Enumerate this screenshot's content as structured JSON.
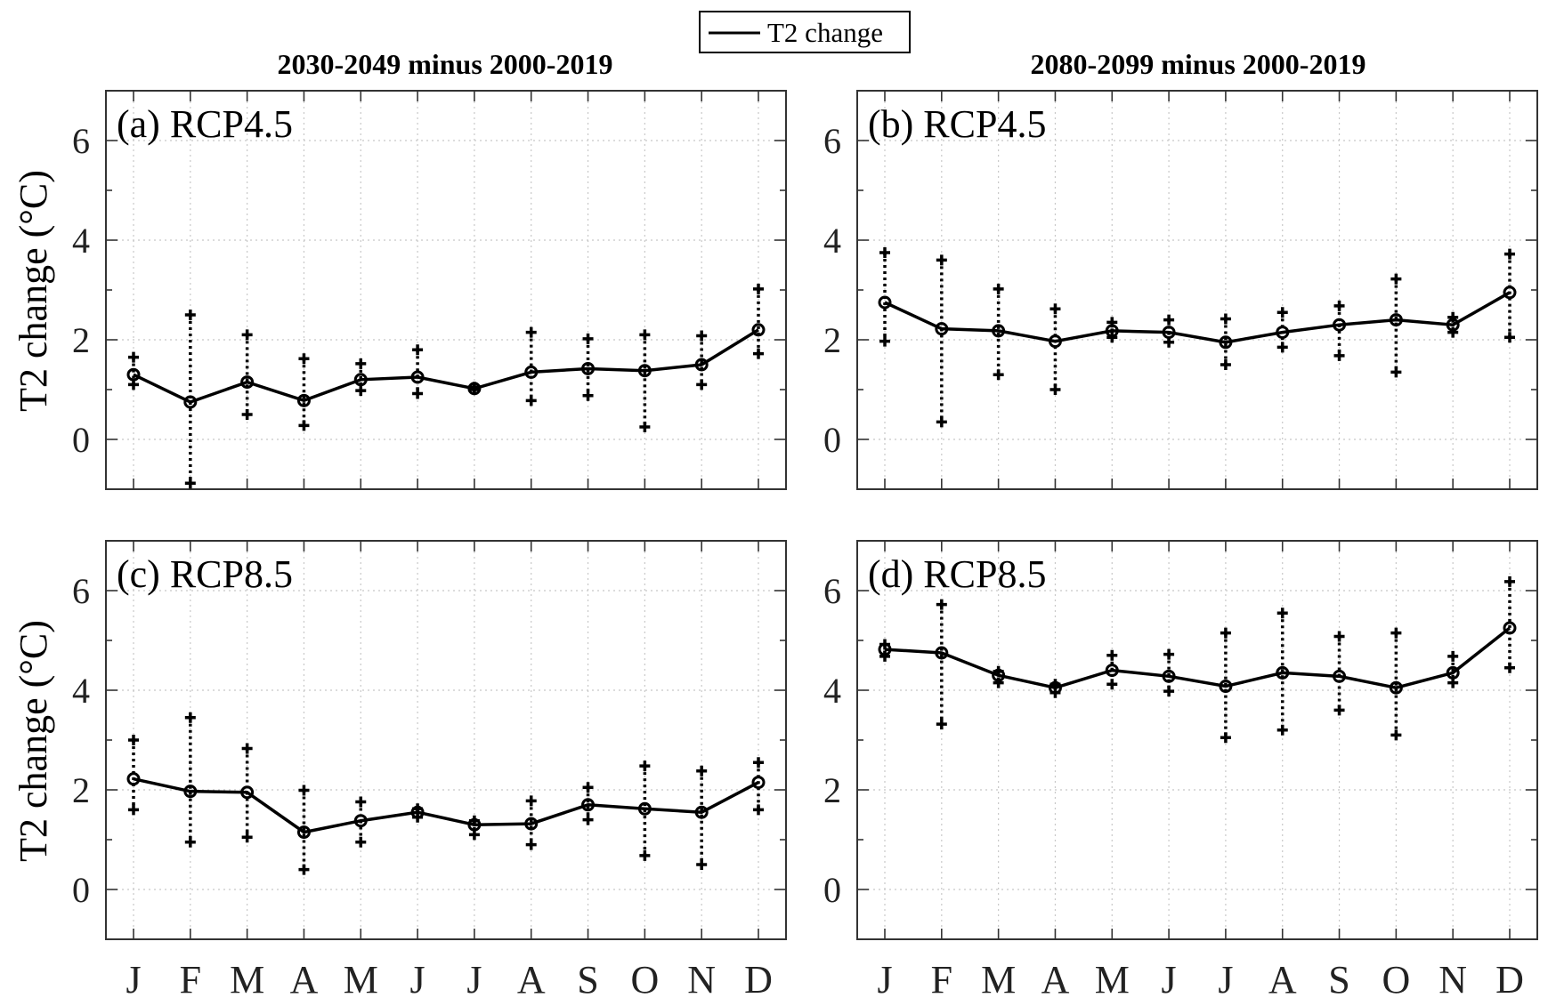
{
  "legend": {
    "label": "T2 change"
  },
  "column_titles": [
    "2030-2049 minus 2000-2019",
    "2080-2099 minus 2000-2019"
  ],
  "ylabel": "T2 change (°C)",
  "months": [
    "J",
    "F",
    "M",
    "A",
    "M",
    "J",
    "J",
    "A",
    "S",
    "O",
    "N",
    "D"
  ],
  "chart_data": [
    {
      "type": "line",
      "panel": "(a) RCP4.5",
      "ylim": [
        -1,
        7
      ],
      "yticks": [
        0,
        2,
        4,
        6
      ],
      "grid": true,
      "series": [
        {
          "name": "T2 change",
          "values": [
            1.3,
            0.75,
            1.15,
            0.78,
            1.2,
            1.25,
            1.02,
            1.35,
            1.42,
            1.38,
            1.5,
            2.2
          ],
          "max": [
            1.65,
            2.5,
            2.1,
            1.62,
            1.52,
            1.8,
            1.05,
            2.15,
            2.02,
            2.1,
            2.08,
            3.02
          ],
          "min": [
            1.1,
            -0.88,
            0.5,
            0.28,
            0.98,
            0.92,
            1.0,
            0.78,
            0.88,
            0.25,
            1.1,
            1.72
          ]
        }
      ]
    },
    {
      "type": "line",
      "panel": "(b) RCP4.5",
      "ylim": [
        -1,
        7
      ],
      "yticks": [
        0,
        2,
        4,
        6
      ],
      "grid": true,
      "series": [
        {
          "name": "T2 change",
          "values": [
            2.75,
            2.22,
            2.18,
            1.97,
            2.18,
            2.15,
            1.95,
            2.15,
            2.3,
            2.4,
            2.3,
            2.95
          ],
          "max": [
            3.75,
            3.6,
            3.02,
            2.62,
            2.35,
            2.4,
            2.42,
            2.55,
            2.68,
            3.22,
            2.45,
            3.72
          ],
          "min": [
            1.97,
            0.35,
            1.3,
            1.0,
            2.05,
            1.95,
            1.5,
            1.85,
            1.68,
            1.35,
            2.15,
            2.05
          ]
        }
      ]
    },
    {
      "type": "line",
      "panel": "(c) RCP8.5",
      "ylim": [
        -1,
        7
      ],
      "yticks": [
        0,
        2,
        4,
        6
      ],
      "grid": true,
      "series": [
        {
          "name": "T2 change",
          "values": [
            2.22,
            1.97,
            1.95,
            1.15,
            1.38,
            1.55,
            1.3,
            1.32,
            1.7,
            1.62,
            1.55,
            2.15
          ],
          "max": [
            3.0,
            3.45,
            2.83,
            1.99,
            1.76,
            1.62,
            1.38,
            1.78,
            2.05,
            2.48,
            2.38,
            2.55
          ],
          "min": [
            1.6,
            0.95,
            1.05,
            0.4,
            0.95,
            1.45,
            1.1,
            0.9,
            1.4,
            0.68,
            0.5,
            1.6
          ]
        }
      ]
    },
    {
      "type": "line",
      "panel": "(d) RCP8.5",
      "ylim": [
        -1,
        7
      ],
      "yticks": [
        0,
        2,
        4,
        6
      ],
      "grid": true,
      "series": [
        {
          "name": "T2 change",
          "values": [
            4.82,
            4.75,
            4.3,
            4.05,
            4.4,
            4.28,
            4.08,
            4.35,
            4.28,
            4.05,
            4.35,
            5.25
          ],
          "max": [
            4.92,
            5.72,
            4.38,
            4.12,
            4.7,
            4.72,
            5.15,
            5.55,
            5.08,
            5.15,
            4.68,
            6.18
          ],
          "min": [
            4.68,
            3.32,
            4.15,
            3.95,
            4.12,
            3.98,
            3.05,
            3.2,
            3.6,
            3.1,
            4.15,
            4.45
          ]
        }
      ]
    }
  ]
}
